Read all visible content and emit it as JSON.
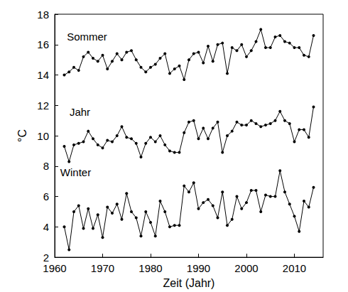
{
  "chart_data": {
    "type": "line",
    "x_label": "Zeit (Jahr)",
    "y_label": "°C",
    "x": [
      1962,
      1963,
      1964,
      1965,
      1966,
      1967,
      1968,
      1969,
      1970,
      1971,
      1972,
      1973,
      1974,
      1975,
      1976,
      1977,
      1978,
      1979,
      1980,
      1981,
      1982,
      1983,
      1984,
      1985,
      1986,
      1987,
      1988,
      1989,
      1990,
      1991,
      1992,
      1993,
      1994,
      1995,
      1996,
      1997,
      1998,
      1999,
      2000,
      2001,
      2002,
      2003,
      2004,
      2005,
      2006,
      2007,
      2008,
      2009,
      2010,
      2011,
      2012,
      2013,
      2014
    ],
    "series": [
      {
        "name": "Sommer",
        "color": "#000000",
        "values": [
          14.0,
          14.2,
          14.5,
          14.3,
          15.2,
          15.5,
          15.1,
          14.9,
          15.3,
          14.4,
          14.9,
          15.4,
          15.0,
          15.5,
          15.6,
          15.0,
          14.5,
          14.2,
          14.5,
          14.7,
          15.1,
          15.4,
          14.1,
          14.4,
          14.6,
          13.7,
          15.0,
          15.4,
          15.5,
          14.8,
          15.9,
          14.9,
          16.0,
          16.1,
          14.1,
          15.8,
          15.6,
          16.0,
          15.2,
          15.6,
          16.2,
          17.0,
          15.8,
          15.8,
          16.5,
          16.6,
          16.2,
          16.1,
          15.8,
          15.8,
          15.3,
          15.2,
          16.6
        ]
      },
      {
        "name": "Jahr",
        "color": "#000000",
        "values": [
          9.3,
          8.3,
          9.4,
          9.5,
          9.6,
          10.3,
          9.8,
          9.4,
          9.2,
          9.7,
          9.6,
          10.0,
          10.6,
          9.9,
          9.8,
          9.5,
          8.6,
          9.5,
          9.9,
          9.6,
          10.0,
          9.4,
          9.0,
          8.9,
          8.9,
          10.2,
          10.9,
          11.0,
          9.8,
          10.5,
          9.8,
          10.5,
          10.9,
          8.9,
          10.0,
          10.3,
          10.9,
          10.7,
          10.7,
          11.0,
          10.8,
          10.6,
          10.7,
          10.8,
          11.0,
          11.6,
          11.0,
          10.8,
          9.6,
          10.4,
          10.4,
          9.9,
          11.9
        ]
      },
      {
        "name": "Winter",
        "color": "#000000",
        "values": [
          4.0,
          2.5,
          5.0,
          5.4,
          3.9,
          5.2,
          3.9,
          4.8,
          3.3,
          5.3,
          4.9,
          5.5,
          4.5,
          6.2,
          5.0,
          4.6,
          3.4,
          5.0,
          4.3,
          3.4,
          5.7,
          5.0,
          4.0,
          4.1,
          4.1,
          6.7,
          6.3,
          6.9,
          5.2,
          5.6,
          5.8,
          5.4,
          4.6,
          6.3,
          4.1,
          4.5,
          6.0,
          5.2,
          5.6,
          6.4,
          6.4,
          5.0,
          6.1,
          6.0,
          6.0,
          7.7,
          6.3,
          5.5,
          4.7,
          3.7,
          5.7,
          5.3,
          6.6
        ]
      }
    ],
    "xlim": [
      1960,
      2016
    ],
    "xticks": [
      1960,
      1970,
      1980,
      1990,
      2000,
      2010
    ],
    "ylim": [
      2,
      18
    ],
    "yticks": [
      2,
      4,
      6,
      8,
      10,
      12,
      14,
      16,
      18
    ],
    "grid": false,
    "marker": "circle",
    "line_style": "solid"
  }
}
